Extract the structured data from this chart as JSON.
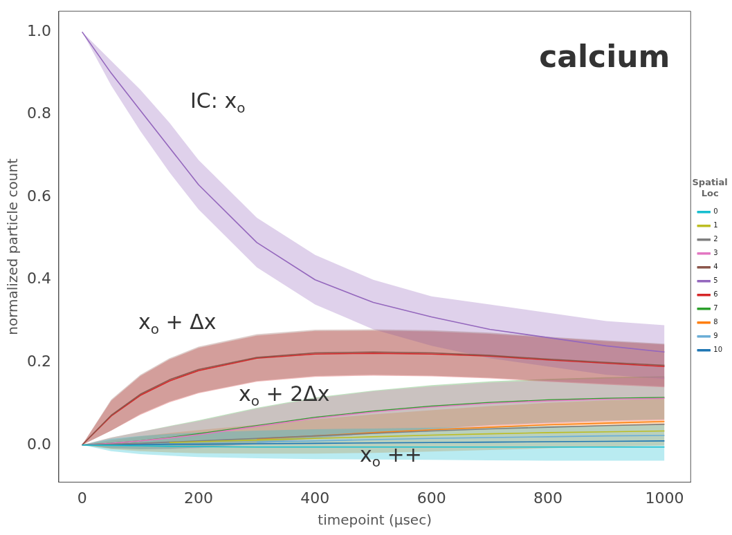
{
  "chart_data": {
    "type": "line",
    "title": "calcium",
    "xlabel": "timepoint (µsec)",
    "ylabel": "normalized particle count",
    "legend_title": "Spatial Loc",
    "legend": "right",
    "marker": "none",
    "xlim": [
      -40,
      1045
    ],
    "ylim": [
      -0.09,
      1.05
    ],
    "xticks": [
      0,
      200,
      400,
      600,
      800,
      1000
    ],
    "yticks": [
      {
        "value": 0,
        "label": "0.0"
      },
      0.2,
      0.4,
      0.6,
      0.8,
      {
        "value": 1,
        "label": "1.0"
      }
    ],
    "x": [
      0,
      50,
      100,
      150,
      200,
      300,
      400,
      500,
      600,
      700,
      800,
      900,
      1000
    ],
    "series": [
      {
        "name": "0",
        "color": "#17becf",
        "values": [
          0,
          -0.001,
          -0.002,
          -0.003,
          -0.004,
          -0.005,
          -0.005,
          -0.005,
          -0.005,
          -0.005,
          -0.005,
          -0.005,
          -0.005
        ],
        "lower": [
          0,
          -0.015,
          -0.022,
          -0.026,
          -0.029,
          -0.032,
          -0.034,
          -0.035,
          -0.036,
          -0.037,
          -0.038,
          -0.038,
          -0.038
        ],
        "upper": [
          0,
          0.015,
          0.022,
          0.027,
          0.03,
          0.035,
          0.038,
          0.04,
          0.042,
          0.044,
          0.046,
          0.047,
          0.048
        ]
      },
      {
        "name": "1",
        "color": "#bcbd22",
        "values": [
          null,
          null,
          null,
          0.006,
          0.008,
          0.012,
          0.016,
          0.02,
          0.024,
          0.027,
          0.03,
          0.032,
          0.034
        ]
      },
      {
        "name": "2",
        "color": "#7f7f7f",
        "values": [
          0,
          0.002,
          0.004,
          0.007,
          0.01,
          0.016,
          0.022,
          0.028,
          0.034,
          0.039,
          0.043,
          0.047,
          0.05
        ]
      },
      {
        "name": "3",
        "color": "#e377c2",
        "values": [
          0,
          0.004,
          0.01,
          0.017,
          0.025,
          0.045,
          0.065,
          0.08,
          0.092,
          0.101,
          0.107,
          0.111,
          0.113
        ],
        "lower": [
          0,
          -0.008,
          -0.01,
          -0.01,
          -0.008,
          0.002,
          0.015,
          0.027,
          0.037,
          0.046,
          0.052,
          0.057,
          0.06
        ],
        "upper": [
          0,
          0.018,
          0.032,
          0.045,
          0.058,
          0.088,
          0.113,
          0.13,
          0.142,
          0.151,
          0.157,
          0.161,
          0.164
        ]
      },
      {
        "name": "4",
        "color": "#8c564b",
        "values": [
          0,
          0.072,
          0.123,
          0.158,
          0.183,
          0.212,
          0.223,
          0.225,
          0.223,
          0.217,
          0.208,
          0.2,
          0.193
        ],
        "lower": [
          0,
          0.035,
          0.075,
          0.105,
          0.127,
          0.155,
          0.167,
          0.17,
          0.168,
          0.163,
          0.155,
          0.148,
          0.142
        ],
        "upper": [
          0,
          0.11,
          0.17,
          0.21,
          0.238,
          0.268,
          0.279,
          0.28,
          0.278,
          0.272,
          0.262,
          0.253,
          0.245
        ]
      },
      {
        "name": "5",
        "color": "#9467bd",
        "values": [
          1,
          0.9,
          0.81,
          0.72,
          0.63,
          0.49,
          0.4,
          0.345,
          0.31,
          0.28,
          0.26,
          0.24,
          0.225
        ],
        "lower": [
          1,
          0.87,
          0.76,
          0.66,
          0.57,
          0.43,
          0.34,
          0.28,
          0.24,
          0.21,
          0.19,
          0.17,
          0.16
        ],
        "upper": [
          1,
          0.93,
          0.86,
          0.78,
          0.69,
          0.55,
          0.46,
          0.4,
          0.36,
          0.34,
          0.32,
          0.3,
          0.29
        ]
      },
      {
        "name": "6",
        "color": "#d62728",
        "values": [
          0,
          0.07,
          0.12,
          0.155,
          0.18,
          0.21,
          0.22,
          0.222,
          0.22,
          0.215,
          0.206,
          0.198,
          0.19
        ],
        "lower": [
          0,
          0.035,
          0.073,
          0.103,
          0.125,
          0.153,
          0.165,
          0.168,
          0.166,
          0.161,
          0.153,
          0.146,
          0.14
        ],
        "upper": [
          0,
          0.107,
          0.167,
          0.207,
          0.235,
          0.265,
          0.276,
          0.277,
          0.275,
          0.269,
          0.26,
          0.251,
          0.243
        ]
      },
      {
        "name": "7",
        "color": "#2ca02c",
        "values": [
          0,
          0.004,
          0.01,
          0.018,
          0.027,
          0.047,
          0.067,
          0.082,
          0.094,
          0.103,
          0.109,
          0.113,
          0.115
        ],
        "lower": [
          0,
          -0.008,
          -0.01,
          -0.009,
          -0.006,
          0.004,
          0.017,
          0.029,
          0.039,
          0.048,
          0.054,
          0.059,
          0.062
        ],
        "upper": [
          0,
          0.018,
          0.032,
          0.046,
          0.06,
          0.09,
          0.115,
          0.132,
          0.145,
          0.154,
          0.16,
          0.164,
          0.166
        ]
      },
      {
        "name": "8",
        "color": "#ff7f0e",
        "values": [
          null,
          null,
          null,
          null,
          null,
          0.015,
          0.022,
          0.03,
          0.037,
          0.043,
          0.049,
          0.053,
          0.057
        ],
        "lower": [
          0,
          -0.01,
          -0.015,
          -0.018,
          -0.02,
          -0.021,
          -0.021,
          -0.019,
          -0.016,
          -0.012,
          -0.008,
          -0.004,
          -0.001
        ],
        "upper": [
          0,
          0.012,
          0.021,
          0.029,
          0.036,
          0.049,
          0.062,
          0.074,
          0.084,
          0.094,
          0.102,
          0.108,
          0.112
        ]
      },
      {
        "name": "9",
        "color": "#6baed6",
        "values": [
          null,
          null,
          null,
          null,
          null,
          0.007,
          0.01,
          0.013,
          0.016,
          0.018,
          0.02,
          0.022,
          0.023
        ]
      },
      {
        "name": "10",
        "color": "#1f77b4",
        "values": [
          0,
          0.001,
          0.001,
          0.002,
          0.002,
          0.003,
          0.004,
          0.005,
          0.006,
          0.007,
          0.008,
          0.009,
          0.01
        ]
      }
    ],
    "annotations": [
      "IC: x$_{o}$",
      "x$_{o}$ + Δx",
      "x$_{o}$ + 2Δx",
      "x$_{o}$ ++"
    ]
  }
}
